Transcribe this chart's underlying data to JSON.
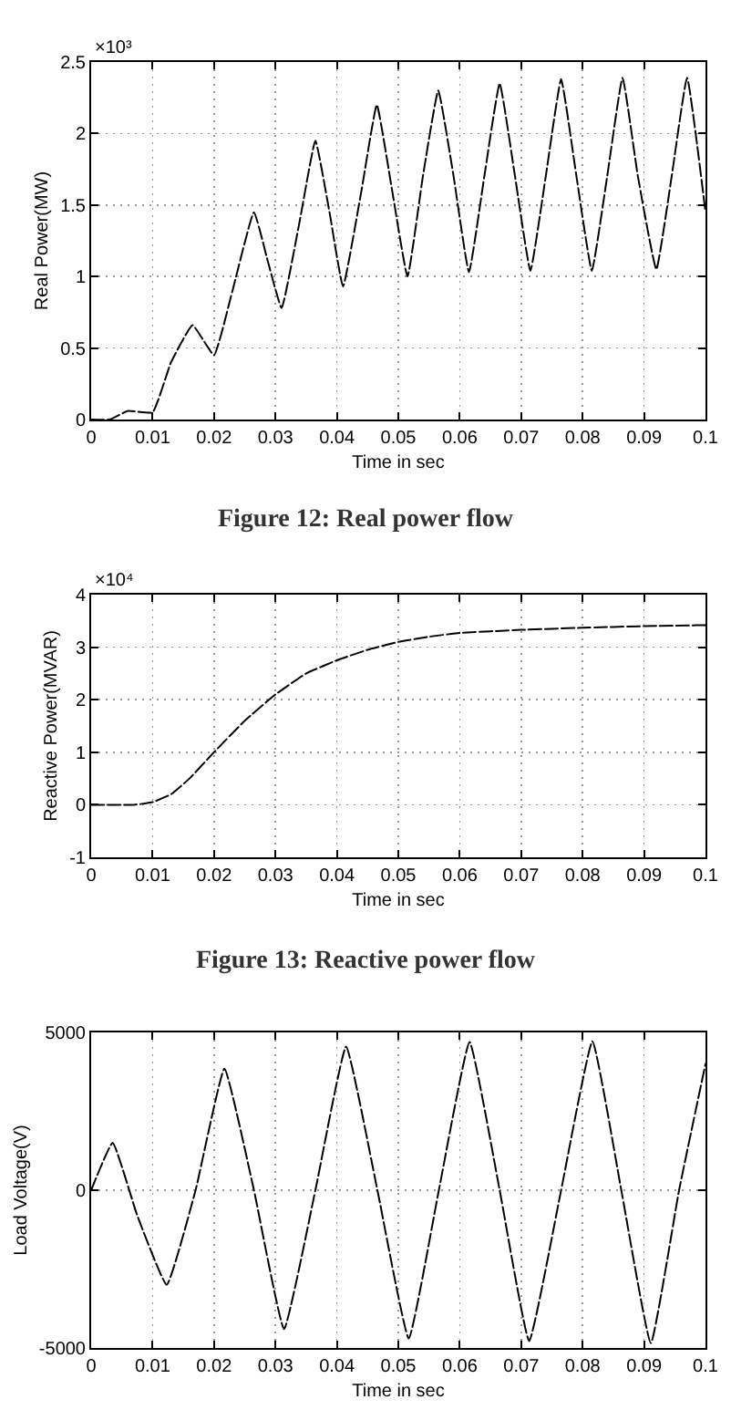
{
  "chart_data": [
    {
      "type": "line",
      "title": "Figure 12: Real power flow",
      "xlabel": "Time in sec",
      "ylabel": "Real Power(MW)",
      "annotations": [
        "×10³"
      ],
      "x": [
        0,
        0.003,
        0.006,
        0.01,
        0.013,
        0.0165,
        0.02,
        0.023,
        0.0265,
        0.0288,
        0.031,
        0.034,
        0.0365,
        0.0388,
        0.041,
        0.044,
        0.0465,
        0.049,
        0.0515,
        0.054,
        0.0565,
        0.059,
        0.0615,
        0.064,
        0.0665,
        0.069,
        0.0715,
        0.074,
        0.0765,
        0.079,
        0.0815,
        0.084,
        0.0865,
        0.089,
        0.092,
        0.0945,
        0.097,
        0.1
      ],
      "values": [
        0,
        0,
        0.06,
        0.05,
        0.4,
        0.66,
        0.45,
        0.9,
        1.45,
        1.1,
        0.78,
        1.4,
        1.95,
        1.45,
        0.93,
        1.6,
        2.2,
        1.6,
        1.0,
        1.7,
        2.3,
        1.7,
        1.03,
        1.7,
        2.35,
        1.7,
        1.04,
        1.7,
        2.38,
        1.7,
        1.04,
        1.7,
        2.39,
        1.7,
        1.05,
        1.7,
        2.39,
        1.45
      ],
      "color": "#000000",
      "line_style": "dashed",
      "marker": "none",
      "grid": true,
      "xlim": [
        0,
        0.1
      ],
      "xticks": [
        0,
        0.01,
        0.02,
        0.03,
        0.04,
        0.05,
        0.06,
        0.07,
        0.08,
        0.09,
        0.1
      ],
      "ylim": [
        0,
        2.5
      ],
      "yticks": [
        0,
        0.5,
        1,
        1.5,
        2,
        2.5
      ]
    },
    {
      "type": "line",
      "title": "Figure 13: Reactive power flow",
      "xlabel": "Time in sec",
      "ylabel": "Reactive Power(MVAR)",
      "annotations": [
        "×10⁴"
      ],
      "x": [
        0,
        0.007,
        0.01,
        0.013,
        0.016,
        0.02,
        0.025,
        0.03,
        0.035,
        0.04,
        0.045,
        0.05,
        0.055,
        0.06,
        0.07,
        0.08,
        0.09,
        0.1
      ],
      "values": [
        0,
        0,
        0.05,
        0.2,
        0.5,
        1.0,
        1.6,
        2.1,
        2.5,
        2.75,
        2.95,
        3.1,
        3.2,
        3.27,
        3.33,
        3.37,
        3.4,
        3.42
      ],
      "color": "#000000",
      "line_style": "dashed",
      "marker": "none",
      "grid": true,
      "xlim": [
        0,
        0.1
      ],
      "xticks": [
        0,
        0.01,
        0.02,
        0.03,
        0.04,
        0.05,
        0.06,
        0.07,
        0.08,
        0.09,
        0.1
      ],
      "ylim": [
        -1,
        4
      ],
      "yticks": [
        -1,
        0,
        1,
        2,
        3,
        4
      ]
    },
    {
      "type": "line",
      "xlabel": "Time in sec",
      "ylabel": "Load Voltage(V)",
      "x": [
        0,
        0.0035,
        0.0075,
        0.0123,
        0.017,
        0.0217,
        0.0265,
        0.0314,
        0.0365,
        0.0415,
        0.0466,
        0.0517,
        0.0566,
        0.0616,
        0.0665,
        0.0713,
        0.0765,
        0.0816,
        0.0863,
        0.0911,
        0.0957,
        0.1
      ],
      "values": [
        0,
        1500,
        -800,
        -3000,
        0,
        3850,
        0,
        -4400,
        0,
        4550,
        0,
        -4700,
        0,
        4700,
        0,
        -4780,
        0,
        4720,
        0,
        -4850,
        0,
        4000
      ],
      "color": "#000000",
      "line_style": "dashed",
      "marker": "none",
      "grid": true,
      "xlim": [
        0,
        0.1
      ],
      "xticks": [
        0,
        0.01,
        0.02,
        0.03,
        0.04,
        0.05,
        0.06,
        0.07,
        0.08,
        0.09,
        0.1
      ],
      "ylim": [
        -5000,
        5000
      ],
      "yticks": [
        -5000,
        0,
        5000
      ]
    }
  ]
}
